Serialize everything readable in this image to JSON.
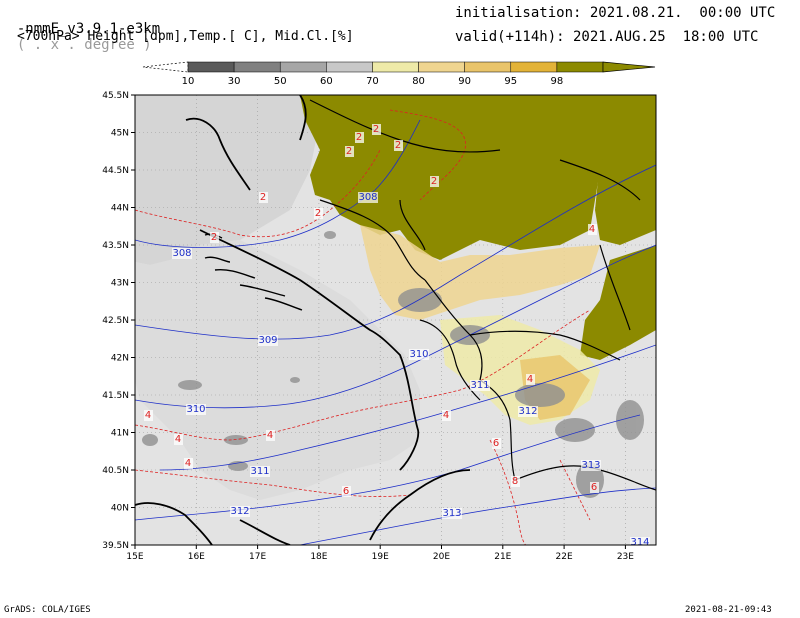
{
  "header": {
    "model": "-nmmE_v3.9.1-e3km",
    "units": "( . x . degree )",
    "fields": "<700hPa> Height [dpm],Temp.[ C], Mid.Cl.[%]",
    "init": "initialisation: 2021.08.21.  00:00 UTC",
    "valid": "valid(+114h): 2021.AUG.25  18:00 UTC"
  },
  "colorbar": {
    "labels": [
      "10",
      "30",
      "50",
      "60",
      "70",
      "80",
      "90",
      "95",
      "98"
    ],
    "colors": [
      "#5a5a5a",
      "#808080",
      "#a6a6a6",
      "#c8c8c8",
      "#eeeaa8",
      "#efd590",
      "#e9c46a",
      "#e3b338",
      "#8c8a00"
    ]
  },
  "map": {
    "x_ticks": [
      "15E",
      "16E",
      "17E",
      "18E",
      "19E",
      "20E",
      "21E",
      "22E",
      "23E"
    ],
    "y_ticks": [
      "45.5N",
      "45N",
      "44.5N",
      "44N",
      "43.5N",
      "43N",
      "42.5N",
      "42N",
      "41.5N",
      "41N",
      "40.5N",
      "40N",
      "39.5N"
    ],
    "height_labels": [
      "308",
      "308",
      "309",
      "310",
      "310",
      "311",
      "311",
      "312",
      "312",
      "313",
      "313",
      "314"
    ],
    "temp_labels": [
      "2",
      "2",
      "2",
      "2",
      "2",
      "2",
      "2",
      "2",
      "4",
      "4",
      "4",
      "4",
      "4",
      "4",
      "4",
      "6",
      "6",
      "6",
      "8"
    ],
    "colors": {
      "land": "#e3e3e3",
      "cloud_high": "#8c8a00",
      "height_line": "#1e2fc8",
      "temp_line": "#dd2222",
      "border": "#000000"
    }
  },
  "footer": {
    "left": "GrADS: COLA/IGES",
    "right": "2021-08-21-09:43"
  }
}
